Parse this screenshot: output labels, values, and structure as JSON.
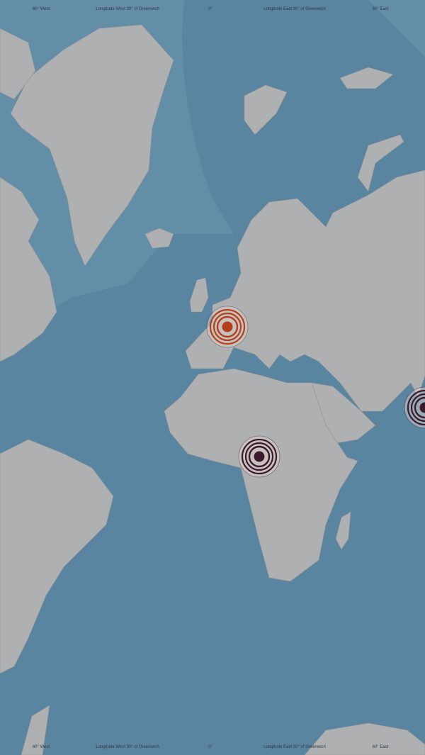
{
  "map": {
    "graticule_labels": [
      "60° West",
      "Longitude West 30° of Greenwich",
      "0°",
      "Longitude East 30° of Greenwich",
      "60° East"
    ],
    "colors": {
      "ocean": "#5f8eab",
      "shelf": "#79a3bb",
      "land": "#bcbcbc",
      "border": "#8f8f8f"
    },
    "markers": [
      {
        "name": "western-europe",
        "color": "#b5411c",
        "ring_color": "#4a2a2a"
      },
      {
        "name": "central-africa",
        "color": "#3d1a2e",
        "ring_color": "#3d1a2e"
      },
      {
        "name": "india",
        "color": "#3d1a2e",
        "ring_color": "#3d1a2e"
      }
    ]
  }
}
